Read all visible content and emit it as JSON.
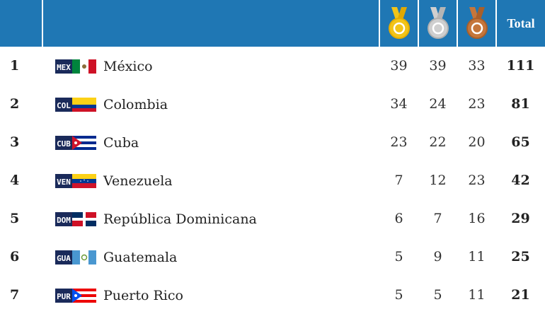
{
  "header": {
    "gold_icon": "gold-medal-icon",
    "silver_icon": "silver-medal-icon",
    "bronze_icon": "bronze-medal-icon",
    "total_label": "Total"
  },
  "colors": {
    "header_bg": "#1f77b4",
    "gold": "#f2c419",
    "silver": "#c7c7c7",
    "bronze": "#c5763b"
  },
  "rows": [
    {
      "rank": "1",
      "code": "MEX",
      "country": "México",
      "gold": "39",
      "silver": "39",
      "bronze": "33",
      "total": "111"
    },
    {
      "rank": "2",
      "code": "COL",
      "country": "Colombia",
      "gold": "34",
      "silver": "24",
      "bronze": "23",
      "total": "81"
    },
    {
      "rank": "3",
      "code": "CUB",
      "country": "Cuba",
      "gold": "23",
      "silver": "22",
      "bronze": "20",
      "total": "65"
    },
    {
      "rank": "4",
      "code": "VEN",
      "country": "Venezuela",
      "gold": "7",
      "silver": "12",
      "bronze": "23",
      "total": "42"
    },
    {
      "rank": "5",
      "code": "DOM",
      "country": "República Dominicana",
      "gold": "6",
      "silver": "7",
      "bronze": "16",
      "total": "29"
    },
    {
      "rank": "6",
      "code": "GUA",
      "country": "Guatemala",
      "gold": "5",
      "silver": "9",
      "bronze": "11",
      "total": "25"
    },
    {
      "rank": "7",
      "code": "PUR",
      "country": "Puerto Rico",
      "gold": "5",
      "silver": "5",
      "bronze": "11",
      "total": "21"
    }
  ]
}
